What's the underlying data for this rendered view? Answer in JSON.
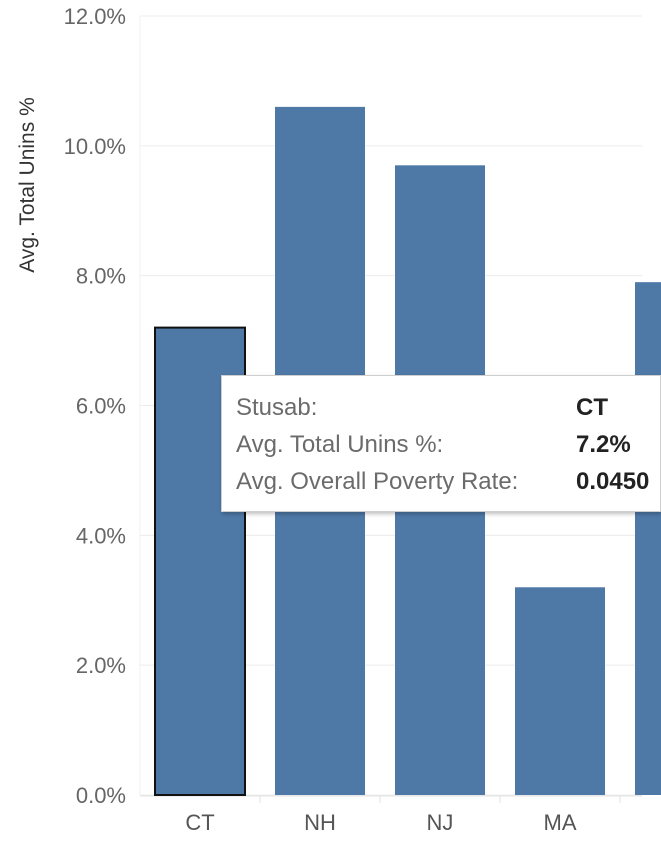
{
  "chart_data": {
    "type": "bar",
    "categories": [
      "CT",
      "NH",
      "NJ",
      "MA",
      ""
    ],
    "values": [
      7.2,
      10.6,
      9.7,
      3.2,
      7.9
    ],
    "ylabel": "Avg. Total Unins %",
    "xlabel": "",
    "ylim": [
      0,
      12
    ],
    "y_ticks": [
      "0.0%",
      "2.0%",
      "4.0%",
      "6.0%",
      "8.0%",
      "10.0%",
      "12.0%"
    ],
    "y_tick_values": [
      0,
      2,
      4,
      6,
      8,
      10,
      12
    ],
    "selected_category": "CT",
    "grid": true,
    "bar_color": "#4e79a7"
  },
  "tooltip": {
    "rows": [
      {
        "key": "Stusab:",
        "value": "CT"
      },
      {
        "key": "Avg. Total Unins %:",
        "value": "7.2%"
      },
      {
        "key": "Avg. Overall Poverty Rate:",
        "value": "0.0450"
      }
    ]
  }
}
